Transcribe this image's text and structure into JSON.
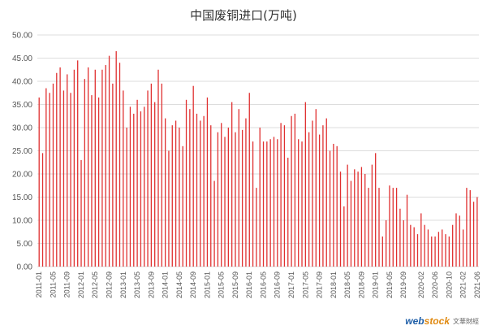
{
  "chart_data": {
    "type": "bar",
    "title": "中国废铜进口(万吨)",
    "xlabel": "",
    "ylabel": "",
    "ylim": [
      0,
      50
    ],
    "yticks": [
      "0.00",
      "5.00",
      "10.00",
      "15.00",
      "20.00",
      "25.00",
      "30.00",
      "35.00",
      "40.00",
      "45.00",
      "50.00"
    ],
    "grid": true,
    "legend": "none",
    "bar_color": "#e03030",
    "grid_color": "#dddddd",
    "categories": [
      "2011-01",
      "2011-02",
      "2011-03",
      "2011-04",
      "2011-05",
      "2011-06",
      "2011-07",
      "2011-08",
      "2011-09",
      "2011-10",
      "2011-11",
      "2011-12",
      "2012-01",
      "2012-02",
      "2012-03",
      "2012-04",
      "2012-05",
      "2012-06",
      "2012-07",
      "2012-08",
      "2012-09",
      "2012-10",
      "2012-11",
      "2012-12",
      "2013-01",
      "2013-02",
      "2013-03",
      "2013-04",
      "2013-05",
      "2013-06",
      "2013-07",
      "2013-08",
      "2013-09",
      "2013-10",
      "2013-11",
      "2013-12",
      "2014-01",
      "2014-02",
      "2014-03",
      "2014-04",
      "2014-05",
      "2014-06",
      "2014-07",
      "2014-08",
      "2014-09",
      "2014-10",
      "2014-11",
      "2014-12",
      "2015-01",
      "2015-02",
      "2015-03",
      "2015-04",
      "2015-05",
      "2015-06",
      "2015-07",
      "2015-08",
      "2015-09",
      "2015-10",
      "2015-11",
      "2015-12",
      "2016-01",
      "2016-02",
      "2016-03",
      "2016-04",
      "2016-05",
      "2016-06",
      "2016-07",
      "2016-08",
      "2016-09",
      "2016-10",
      "2016-11",
      "2016-12",
      "2017-01",
      "2017-02",
      "2017-03",
      "2017-04",
      "2017-05",
      "2017-06",
      "2017-07",
      "2017-08",
      "2017-09",
      "2017-10",
      "2017-11",
      "2017-12",
      "2018-01",
      "2018-02",
      "2018-03",
      "2018-04",
      "2018-05",
      "2018-06",
      "2018-07",
      "2018-08",
      "2018-09",
      "2018-10",
      "2018-11",
      "2018-12",
      "2019-01",
      "2019-02",
      "2019-03",
      "2019-04",
      "2019-05",
      "2019-06",
      "2019-07",
      "2019-08",
      "2019-09",
      "2019-10",
      "2019-11",
      "2019-12",
      "2020-01",
      "2020-02",
      "2020-03",
      "2020-04",
      "2020-05",
      "2020-06",
      "2020-07",
      "2020-08",
      "2020-09",
      "2020-10",
      "2020-11",
      "2020-12",
      "2021-01",
      "2021-02",
      "2021-03",
      "2021-04",
      "2021-05",
      "2021-06"
    ],
    "xtick_labels": [
      "2011-01",
      "2011-05",
      "2011-09",
      "2012-01",
      "2012-05",
      "2012-09",
      "2013-01",
      "2013-05",
      "2013-09",
      "2014-01",
      "2014-05",
      "2014-09",
      "2015-01",
      "2015-05",
      "2015-09",
      "2016-01",
      "2016-05",
      "2016-09",
      "2017-01",
      "2017-05",
      "2017-09",
      "2018-01",
      "2018-05",
      "2018-09",
      "2019-01",
      "2019-05",
      "2019-09",
      "2020-02",
      "2020-06",
      "2020-10",
      "2021-02",
      "2021-06"
    ],
    "values": [
      36.5,
      24.5,
      38.5,
      37.5,
      39.5,
      41.8,
      43.0,
      38.0,
      41.5,
      37.5,
      42.5,
      44.5,
      23.0,
      40.5,
      43.0,
      37.0,
      42.5,
      36.5,
      42.5,
      43.5,
      45.5,
      39.5,
      46.5,
      44.0,
      38.0,
      30.0,
      34.5,
      33.0,
      36.0,
      33.5,
      34.5,
      38.0,
      39.5,
      35.5,
      42.5,
      39.5,
      32.0,
      25.0,
      30.5,
      31.5,
      30.0,
      26.0,
      36.0,
      34.0,
      39.0,
      33.0,
      31.5,
      32.5,
      36.5,
      30.5,
      18.5,
      29.0,
      31.0,
      28.0,
      30.0,
      35.5,
      29.0,
      34.0,
      29.5,
      32.0,
      37.5,
      27.0,
      17.0,
      30.0,
      27.0,
      27.0,
      27.5,
      28.0,
      27.5,
      31.0,
      30.5,
      23.5,
      32.5,
      33.0,
      27.5,
      27.0,
      35.5,
      29.0,
      31.5,
      34.0,
      28.5,
      30.5,
      32.0,
      25.0,
      26.5,
      26.0,
      20.5,
      13.0,
      22.0,
      18.5,
      21.0,
      20.5,
      21.5,
      20.0,
      17.0,
      22.0,
      24.5,
      17.0,
      6.5,
      10.0,
      17.5,
      17.0,
      17.0,
      12.5,
      10.0,
      15.5,
      9.0,
      8.5,
      7.0,
      11.5,
      9.0,
      8.0,
      6.5,
      6.5,
      7.5,
      8.0,
      7.0,
      6.5,
      9.0,
      11.5,
      11.0,
      8.0,
      17.0,
      16.5,
      14.0,
      15.0
    ]
  },
  "watermark": {
    "logo_web": "web",
    "logo_stock": "stock",
    "cn": "文華財經"
  }
}
